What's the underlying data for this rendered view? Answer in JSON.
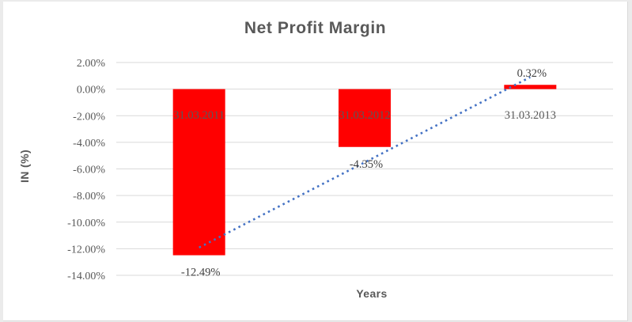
{
  "chart_data": {
    "type": "bar",
    "title": "Net Profit Margin",
    "xlabel": "Years",
    "ylabel": "IN (%)",
    "categories": [
      "31.03.2011",
      "31.03.2012",
      "31.03.2013"
    ],
    "values": [
      -12.49,
      -4.35,
      0.32
    ],
    "data_labels": [
      "-12.49%",
      "-4.35%",
      "0.32%"
    ],
    "ylim": [
      -14,
      2
    ],
    "ytick_step": 2,
    "ytick_labels": [
      "2.00%",
      "0.00%",
      "-2.00%",
      "-4.00%",
      "-6.00%",
      "-8.00%",
      "-10.00%",
      "-12.00%",
      "-14.00%"
    ],
    "grid": true,
    "legend": "none",
    "trendline": {
      "type": "linear",
      "style": "dotted"
    },
    "colors": {
      "bar": "#FF0000",
      "trendline": "#4472C4",
      "gridline": "#D9D9D9",
      "axis_text": "#595959",
      "data_label_text": "#404040"
    }
  }
}
